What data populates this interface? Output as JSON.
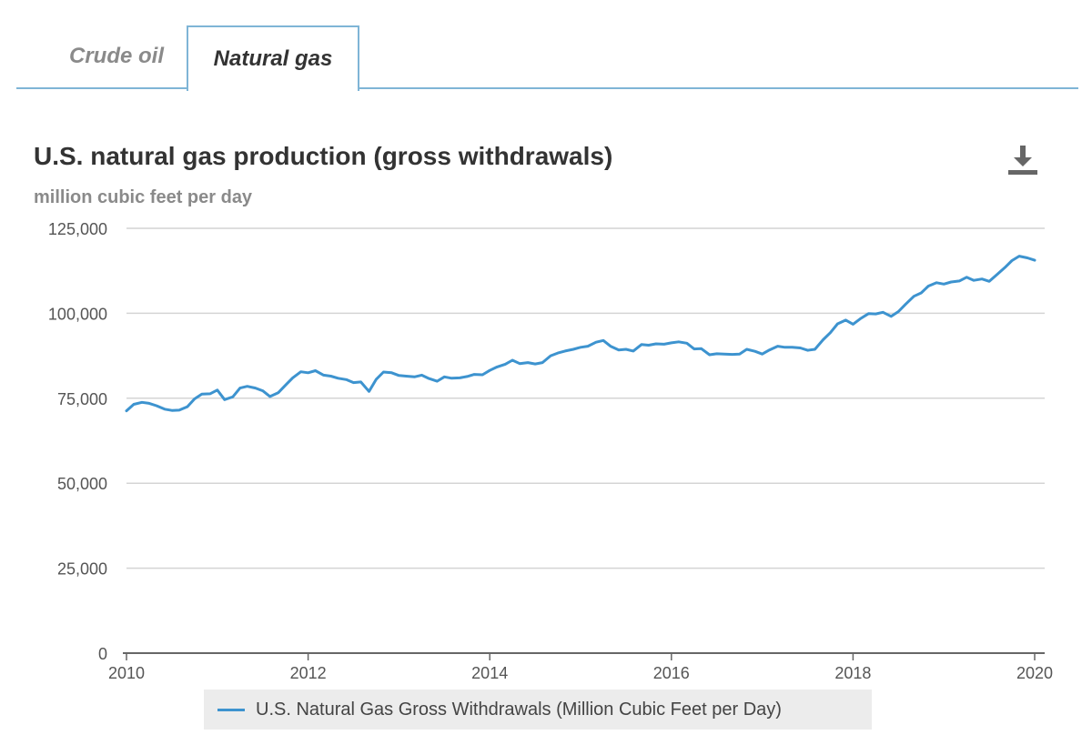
{
  "tabs": [
    {
      "label": "Crude oil",
      "active": false
    },
    {
      "label": "Natural gas",
      "active": true
    }
  ],
  "accent_color": "#7fb5d6",
  "download_icon": "download-icon",
  "chart_data": {
    "type": "line",
    "title": "U.S. natural gas production (gross withdrawals)",
    "ylabel": "million cubic feet per day",
    "xlabel": "",
    "ylim": [
      0,
      125000
    ],
    "xlim": [
      2010,
      2020
    ],
    "y_ticks": [
      "0",
      "25,000",
      "50,000",
      "75,000",
      "100,000",
      "125,000"
    ],
    "x_ticks": [
      "2010",
      "2012",
      "2014",
      "2016",
      "2018",
      "2020"
    ],
    "grid": true,
    "legend_position": "bottom-center",
    "series": [
      {
        "name": "U.S. Natural Gas Gross Withdrawals (Million Cubic Feet per Day)",
        "color": "#3d93cf",
        "points": [
          [
            2010.0,
            71300
          ],
          [
            2010.08,
            73200
          ],
          [
            2010.17,
            73800
          ],
          [
            2010.25,
            73500
          ],
          [
            2010.33,
            72800
          ],
          [
            2010.42,
            71800
          ],
          [
            2010.5,
            71400
          ],
          [
            2010.58,
            71500
          ],
          [
            2010.67,
            72500
          ],
          [
            2010.75,
            74800
          ],
          [
            2010.83,
            76200
          ],
          [
            2010.92,
            76300
          ],
          [
            2011.0,
            77400
          ],
          [
            2011.08,
            74600
          ],
          [
            2011.17,
            75400
          ],
          [
            2011.25,
            78000
          ],
          [
            2011.33,
            78500
          ],
          [
            2011.42,
            78000
          ],
          [
            2011.5,
            77200
          ],
          [
            2011.58,
            75500
          ],
          [
            2011.67,
            76600
          ],
          [
            2011.75,
            78800
          ],
          [
            2011.83,
            81000
          ],
          [
            2011.92,
            82800
          ],
          [
            2012.0,
            82500
          ],
          [
            2012.08,
            83100
          ],
          [
            2012.17,
            81800
          ],
          [
            2012.25,
            81500
          ],
          [
            2012.33,
            80900
          ],
          [
            2012.42,
            80500
          ],
          [
            2012.5,
            79600
          ],
          [
            2012.58,
            79800
          ],
          [
            2012.67,
            77000
          ],
          [
            2012.75,
            80600
          ],
          [
            2012.83,
            82700
          ],
          [
            2012.92,
            82500
          ],
          [
            2013.0,
            81700
          ],
          [
            2013.08,
            81500
          ],
          [
            2013.17,
            81300
          ],
          [
            2013.25,
            81800
          ],
          [
            2013.33,
            80800
          ],
          [
            2013.42,
            80000
          ],
          [
            2013.5,
            81300
          ],
          [
            2013.58,
            80900
          ],
          [
            2013.67,
            81000
          ],
          [
            2013.75,
            81400
          ],
          [
            2013.83,
            82000
          ],
          [
            2013.92,
            81900
          ],
          [
            2014.0,
            83200
          ],
          [
            2014.08,
            84200
          ],
          [
            2014.17,
            85000
          ],
          [
            2014.25,
            86200
          ],
          [
            2014.33,
            85200
          ],
          [
            2014.42,
            85500
          ],
          [
            2014.5,
            85100
          ],
          [
            2014.58,
            85500
          ],
          [
            2014.67,
            87500
          ],
          [
            2014.75,
            88300
          ],
          [
            2014.83,
            88900
          ],
          [
            2014.92,
            89400
          ],
          [
            2015.0,
            90000
          ],
          [
            2015.08,
            90300
          ],
          [
            2015.17,
            91500
          ],
          [
            2015.25,
            92000
          ],
          [
            2015.33,
            90300
          ],
          [
            2015.42,
            89200
          ],
          [
            2015.5,
            89400
          ],
          [
            2015.58,
            88900
          ],
          [
            2015.67,
            90800
          ],
          [
            2015.75,
            90600
          ],
          [
            2015.83,
            91000
          ],
          [
            2015.92,
            90900
          ],
          [
            2016.0,
            91300
          ],
          [
            2016.08,
            91600
          ],
          [
            2016.17,
            91200
          ],
          [
            2016.25,
            89500
          ],
          [
            2016.33,
            89600
          ],
          [
            2016.42,
            87800
          ],
          [
            2016.5,
            88100
          ],
          [
            2016.58,
            88000
          ],
          [
            2016.67,
            87900
          ],
          [
            2016.75,
            88000
          ],
          [
            2016.83,
            89400
          ],
          [
            2016.92,
            88800
          ],
          [
            2017.0,
            88000
          ],
          [
            2017.08,
            89200
          ],
          [
            2017.17,
            90300
          ],
          [
            2017.25,
            90000
          ],
          [
            2017.33,
            90000
          ],
          [
            2017.42,
            89800
          ],
          [
            2017.5,
            89100
          ],
          [
            2017.58,
            89400
          ],
          [
            2017.67,
            92200
          ],
          [
            2017.75,
            94300
          ],
          [
            2017.83,
            96900
          ],
          [
            2017.92,
            98000
          ],
          [
            2018.0,
            96800
          ],
          [
            2018.08,
            98400
          ],
          [
            2018.17,
            99900
          ],
          [
            2018.25,
            99800
          ],
          [
            2018.33,
            100300
          ],
          [
            2018.42,
            99100
          ],
          [
            2018.5,
            100500
          ],
          [
            2018.58,
            102700
          ],
          [
            2018.67,
            105000
          ],
          [
            2018.75,
            106000
          ],
          [
            2018.83,
            108000
          ],
          [
            2018.92,
            109000
          ],
          [
            2019.0,
            108600
          ],
          [
            2019.08,
            109200
          ],
          [
            2019.17,
            109500
          ],
          [
            2019.25,
            110600
          ],
          [
            2019.33,
            109700
          ],
          [
            2019.42,
            110100
          ],
          [
            2019.5,
            109400
          ],
          [
            2019.58,
            111300
          ],
          [
            2019.67,
            113400
          ],
          [
            2019.75,
            115500
          ],
          [
            2019.83,
            116800
          ],
          [
            2019.92,
            116300
          ],
          [
            2020.0,
            115600
          ]
        ]
      }
    ]
  }
}
